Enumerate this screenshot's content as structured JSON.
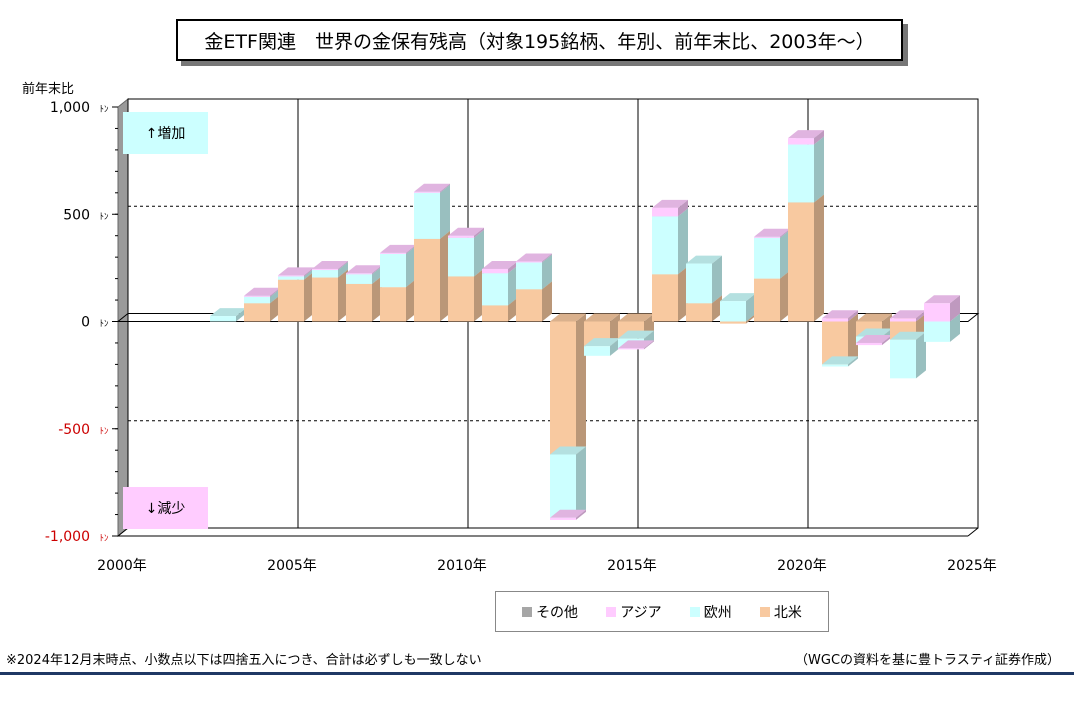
{
  "title": "金ETF関連　世界の金保有残高（対象195銘柄、年別、前年末比、2003年～）",
  "footnote": "※2024年12月末時点、小数点以下は四捨五入につき、合計は必ずしも一致しない",
  "source": "（WGCの資料を基に豊トラスティ証券作成）",
  "zones": {
    "up": "↑増加",
    "down": "↓減少"
  },
  "colors": {
    "北米": "#f8c9a0",
    "欧州": "#ccffff",
    "アジア": "#ffccff",
    "その他": "#a6a6a6"
  },
  "chart_data": {
    "type": "bar",
    "stacked": true,
    "ylabel": "前年末比",
    "ylim": [
      -1000,
      1000
    ],
    "y_ticks": [
      {
        "value": 1000,
        "label": "1,000ﾄﾝ"
      },
      {
        "value": 500,
        "label": "500ﾄﾝ"
      },
      {
        "value": 0,
        "label": "0ﾄﾝ"
      },
      {
        "value": -500,
        "label": "-500ﾄﾝ"
      },
      {
        "value": -1000,
        "label": "-1,000ﾄﾝ"
      }
    ],
    "xlim": [
      2000,
      2025
    ],
    "x_ticks": [
      {
        "value": 2000,
        "label": "2000年"
      },
      {
        "value": 2005,
        "label": "2005年"
      },
      {
        "value": 2010,
        "label": "2010年"
      },
      {
        "value": 2015,
        "label": "2015年"
      },
      {
        "value": 2020,
        "label": "2020年"
      },
      {
        "value": 2025,
        "label": "2025年"
      }
    ],
    "legend": [
      "その他",
      "アジア",
      "欧州",
      "北米"
    ],
    "legend_position": "bottom",
    "x": [
      2003,
      2004,
      2005,
      2006,
      2007,
      2008,
      2009,
      2010,
      2011,
      2012,
      2013,
      2014,
      2015,
      2016,
      2017,
      2018,
      2019,
      2020,
      2021,
      2022,
      2023,
      2024
    ],
    "series": [
      {
        "name": "北米",
        "values": [
          0,
          85,
          195,
          205,
          175,
          160,
          385,
          210,
          75,
          150,
          -620,
          -115,
          -80,
          220,
          85,
          -10,
          200,
          555,
          -200,
          -70,
          -85,
          0
        ]
      },
      {
        "name": "欧州",
        "values": [
          25,
          30,
          15,
          35,
          45,
          155,
          215,
          180,
          150,
          125,
          -295,
          -45,
          -45,
          270,
          185,
          95,
          190,
          270,
          -10,
          -30,
          -180,
          -95
        ]
      },
      {
        "name": "アジア",
        "values": [
          0,
          5,
          5,
          5,
          5,
          5,
          5,
          10,
          20,
          5,
          -10,
          0,
          -5,
          40,
          0,
          0,
          5,
          30,
          15,
          -10,
          15,
          85
        ]
      },
      {
        "name": "その他",
        "values": [
          0,
          0,
          0,
          0,
          0,
          0,
          0,
          0,
          0,
          0,
          0,
          0,
          0,
          0,
          0,
          0,
          0,
          0,
          0,
          0,
          0,
          0
        ]
      }
    ]
  }
}
